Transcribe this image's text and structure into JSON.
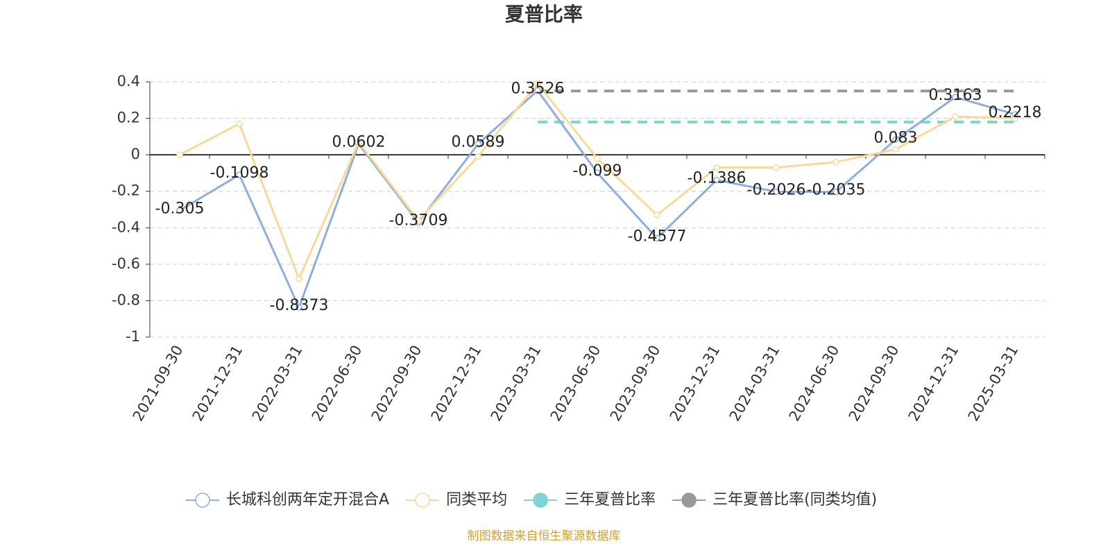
{
  "chart_data": {
    "type": "line",
    "title": "夏普比率",
    "categories": [
      "2021-09-30",
      "2021-12-31",
      "2022-03-31",
      "2022-06-30",
      "2022-09-30",
      "2022-12-31",
      "2023-03-31",
      "2023-06-30",
      "2023-09-30",
      "2023-12-31",
      "2024-03-31",
      "2024-06-30",
      "2024-09-30",
      "2024-12-31",
      "2025-03-31"
    ],
    "series": [
      {
        "name": "长城科创两年定开混合A",
        "color": "#8eaedb",
        "marker": "hollow",
        "labels": true,
        "values": [
          -0.305,
          -0.1098,
          -0.8373,
          0.0602,
          -0.3709,
          0.0589,
          0.3526,
          -0.099,
          -0.4577,
          -0.1386,
          -0.2026,
          -0.2035,
          0.083,
          0.3163,
          0.2218
        ]
      },
      {
        "name": "同类平均",
        "color": "#f9d99a",
        "marker": "hollow",
        "labels": false,
        "values": [
          0,
          0.17,
          -0.68,
          0.07,
          -0.36,
          -0.01,
          0.39,
          -0.02,
          -0.33,
          -0.07,
          -0.07,
          -0.04,
          0.03,
          0.21,
          0.2
        ]
      },
      {
        "name": "三年夏普比率",
        "color": "#7fd3d3",
        "marker": "filled",
        "dashed": true,
        "labels": false,
        "values": [
          null,
          null,
          null,
          null,
          null,
          null,
          0.18,
          0.18,
          0.18,
          0.18,
          0.18,
          0.18,
          0.18,
          0.18,
          0.18
        ]
      },
      {
        "name": "三年夏普比率(同类均值)",
        "color": "#999999",
        "marker": "filled",
        "dashed": true,
        "labels": false,
        "values": [
          null,
          null,
          null,
          null,
          null,
          null,
          0.35,
          0.35,
          0.35,
          0.35,
          0.35,
          0.35,
          0.35,
          0.35,
          0.35
        ]
      }
    ],
    "ylim": [
      -1,
      0.4
    ],
    "yticks": [
      -1,
      -0.8,
      -0.6,
      -0.4,
      -0.2,
      0,
      0.2,
      0.4
    ],
    "grid": true,
    "footer": "制图数据来自恒生聚源数据库"
  }
}
